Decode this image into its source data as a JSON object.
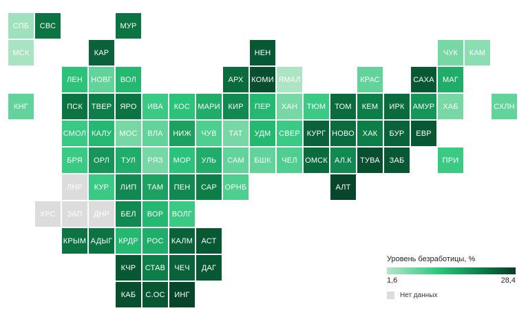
{
  "legend": {
    "title": "Уровень безработицы, %",
    "min_label": "1,6",
    "max_label": "28,4",
    "nodata_label": "Нет данных",
    "scale_colors": [
      "#b4e6c9",
      "#2cc77c",
      "#0b7a45",
      "#063d26"
    ],
    "nodata_color": "#dcdcdc"
  },
  "chart_data": {
    "type": "heatmap",
    "value_range": [
      1.6,
      28.4
    ],
    "tiles": [
      {
        "label": "СПБ",
        "row": 0,
        "col": 0,
        "level": 0.05
      },
      {
        "label": "СВС",
        "row": 0,
        "col": 1,
        "level": 0.7
      },
      {
        "label": "МУР",
        "row": 0,
        "col": 4,
        "level": 0.7
      },
      {
        "label": "МСК",
        "row": 1,
        "col": 0,
        "level": 0.03
      },
      {
        "label": "КАР",
        "row": 1,
        "col": 3,
        "level": 0.8
      },
      {
        "label": "НЕН",
        "row": 1,
        "col": 9,
        "level": 0.85
      },
      {
        "label": "ЧУК",
        "row": 1,
        "col": 16,
        "level": 0.15
      },
      {
        "label": "КАМ",
        "row": 1,
        "col": 17,
        "level": 0.1
      },
      {
        "label": "ЛЕН",
        "row": 2,
        "col": 2,
        "level": 0.35
      },
      {
        "label": "НОВГ",
        "row": 2,
        "col": 3,
        "level": 0.2
      },
      {
        "label": "ВОЛ",
        "row": 2,
        "col": 4,
        "level": 0.4
      },
      {
        "label": "АРХ",
        "row": 2,
        "col": 8,
        "level": 0.75
      },
      {
        "label": "КОМИ",
        "row": 2,
        "col": 9,
        "level": 0.9
      },
      {
        "label": "ЯМАЛ",
        "row": 2,
        "col": 10,
        "level": 0.02
      },
      {
        "label": "КРАС",
        "row": 2,
        "col": 13,
        "level": 0.2
      },
      {
        "label": "САХА",
        "row": 2,
        "col": 15,
        "level": 0.85
      },
      {
        "label": "МАГ",
        "row": 2,
        "col": 16,
        "level": 0.45
      },
      {
        "label": "КНГ",
        "row": 3,
        "col": 0,
        "level": 0.2
      },
      {
        "label": "ПСК",
        "row": 3,
        "col": 2,
        "level": 0.7
      },
      {
        "label": "ТВЕР",
        "row": 3,
        "col": 3,
        "level": 0.65
      },
      {
        "label": "ЯРО",
        "row": 3,
        "col": 4,
        "level": 0.7
      },
      {
        "label": "ИВА",
        "row": 3,
        "col": 5,
        "level": 0.3
      },
      {
        "label": "КОС",
        "row": 3,
        "col": 6,
        "level": 0.35
      },
      {
        "label": "МАРИ",
        "row": 3,
        "col": 7,
        "level": 0.45
      },
      {
        "label": "КИР",
        "row": 3,
        "col": 8,
        "level": 0.6
      },
      {
        "label": "ПЕР",
        "row": 3,
        "col": 9,
        "level": 0.4
      },
      {
        "label": "ХАН",
        "row": 3,
        "col": 10,
        "level": 0.15
      },
      {
        "label": "ТЮМ",
        "row": 3,
        "col": 11,
        "level": 0.3
      },
      {
        "label": "ТОМ",
        "row": 3,
        "col": 12,
        "level": 0.75
      },
      {
        "label": "КЕМ",
        "row": 3,
        "col": 13,
        "level": 0.65
      },
      {
        "label": "ИРК",
        "row": 3,
        "col": 14,
        "level": 0.75
      },
      {
        "label": "АМУР",
        "row": 3,
        "col": 15,
        "level": 0.55
      },
      {
        "label": "ХАБ",
        "row": 3,
        "col": 16,
        "level": 0.15
      },
      {
        "label": "СХЛН",
        "row": 3,
        "col": 18,
        "level": 0.2
      },
      {
        "label": "СМОЛ",
        "row": 4,
        "col": 2,
        "level": 0.3
      },
      {
        "label": "КАЛУ",
        "row": 4,
        "col": 3,
        "level": 0.4
      },
      {
        "label": "МОС",
        "row": 4,
        "col": 4,
        "level": 0.15
      },
      {
        "label": "ВЛА",
        "row": 4,
        "col": 5,
        "level": 0.2
      },
      {
        "label": "НИЖ",
        "row": 4,
        "col": 6,
        "level": 0.5
      },
      {
        "label": "ЧУВ",
        "row": 4,
        "col": 7,
        "level": 0.25
      },
      {
        "label": "ТАТ",
        "row": 4,
        "col": 8,
        "level": 0.15
      },
      {
        "label": "УДМ",
        "row": 4,
        "col": 9,
        "level": 0.4
      },
      {
        "label": "СВЕР",
        "row": 4,
        "col": 10,
        "level": 0.3
      },
      {
        "label": "КУРГ",
        "row": 4,
        "col": 11,
        "level": 0.8
      },
      {
        "label": "НОВО",
        "row": 4,
        "col": 12,
        "level": 0.75
      },
      {
        "label": "ХАК",
        "row": 4,
        "col": 13,
        "level": 0.65
      },
      {
        "label": "БУР",
        "row": 4,
        "col": 14,
        "level": 0.8
      },
      {
        "label": "ЕВР",
        "row": 4,
        "col": 15,
        "level": 0.85
      },
      {
        "label": "БРЯ",
        "row": 5,
        "col": 2,
        "level": 0.3
      },
      {
        "label": "ОРЛ",
        "row": 5,
        "col": 3,
        "level": 0.55
      },
      {
        "label": "ТУЛ",
        "row": 5,
        "col": 4,
        "level": 0.45
      },
      {
        "label": "РЯЗ",
        "row": 5,
        "col": 5,
        "level": 0.15
      },
      {
        "label": "МОР",
        "row": 5,
        "col": 6,
        "level": 0.35
      },
      {
        "label": "УЛЬ",
        "row": 5,
        "col": 7,
        "level": 0.45
      },
      {
        "label": "САМ",
        "row": 5,
        "col": 8,
        "level": 0.2
      },
      {
        "label": "БШК",
        "row": 5,
        "col": 9,
        "level": 0.2
      },
      {
        "label": "ЧЕЛ",
        "row": 5,
        "col": 10,
        "level": 0.25
      },
      {
        "label": "ОМСК",
        "row": 5,
        "col": 11,
        "level": 0.75
      },
      {
        "label": "АЛ.К",
        "row": 5,
        "col": 12,
        "level": 0.6
      },
      {
        "label": "ТУВА",
        "row": 5,
        "col": 13,
        "level": 0.9
      },
      {
        "label": "ЗАБ",
        "row": 5,
        "col": 14,
        "level": 0.85
      },
      {
        "label": "ПРИ",
        "row": 5,
        "col": 16,
        "level": 0.3
      },
      {
        "label": "ЛНР",
        "row": 6,
        "col": 2,
        "level": null
      },
      {
        "label": "КУР",
        "row": 6,
        "col": 3,
        "level": 0.3
      },
      {
        "label": "ЛИП",
        "row": 6,
        "col": 4,
        "level": 0.6
      },
      {
        "label": "ТАМ",
        "row": 6,
        "col": 5,
        "level": 0.5
      },
      {
        "label": "ПЕН",
        "row": 6,
        "col": 6,
        "level": 0.6
      },
      {
        "label": "САР",
        "row": 6,
        "col": 7,
        "level": 0.65
      },
      {
        "label": "ОРНБ",
        "row": 6,
        "col": 8,
        "level": 0.25
      },
      {
        "label": "АЛТ",
        "row": 6,
        "col": 12,
        "level": 0.95
      },
      {
        "label": "ХРС",
        "row": 7,
        "col": 1,
        "level": null
      },
      {
        "label": "ЗАП",
        "row": 7,
        "col": 2,
        "level": null
      },
      {
        "label": "ДНР",
        "row": 7,
        "col": 3,
        "level": null
      },
      {
        "label": "БЕЛ",
        "row": 7,
        "col": 4,
        "level": 0.6
      },
      {
        "label": "ВОР",
        "row": 7,
        "col": 5,
        "level": 0.4
      },
      {
        "label": "ВОЛГ",
        "row": 7,
        "col": 6,
        "level": 0.3
      },
      {
        "label": "КРЫМ",
        "row": 8,
        "col": 2,
        "level": 0.7
      },
      {
        "label": "АДЫГ",
        "row": 8,
        "col": 3,
        "level": 0.7
      },
      {
        "label": "КРДР",
        "row": 8,
        "col": 4,
        "level": 0.4
      },
      {
        "label": "РОС",
        "row": 8,
        "col": 5,
        "level": 0.45
      },
      {
        "label": "КАЛМ",
        "row": 8,
        "col": 6,
        "level": 0.8
      },
      {
        "label": "АСТ",
        "row": 8,
        "col": 7,
        "level": 0.85
      },
      {
        "label": "КЧР",
        "row": 9,
        "col": 4,
        "level": 0.85
      },
      {
        "label": "СТАВ",
        "row": 9,
        "col": 5,
        "level": 0.65
      },
      {
        "label": "ЧЕЧ",
        "row": 9,
        "col": 6,
        "level": 0.8
      },
      {
        "label": "ДАГ",
        "row": 9,
        "col": 7,
        "level": 0.85
      },
      {
        "label": "КАБ",
        "row": 10,
        "col": 4,
        "level": 0.9
      },
      {
        "label": "С.ОС",
        "row": 10,
        "col": 5,
        "level": 0.85
      },
      {
        "label": "ИНГ",
        "row": 10,
        "col": 6,
        "level": 0.95
      }
    ]
  }
}
